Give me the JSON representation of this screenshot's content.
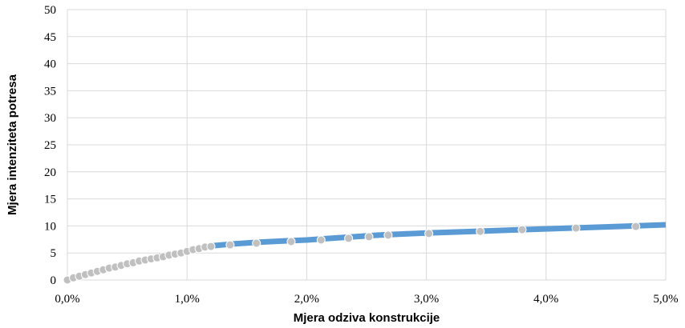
{
  "chart_data": {
    "type": "line",
    "title": "",
    "xlabel": "Mjera odziva konstrukcije",
    "ylabel": "Mjera intenziteta potresa",
    "xlim": [
      0,
      5
    ],
    "ylim": [
      0,
      50
    ],
    "x_ticks": [
      "0,0%",
      "1,0%",
      "2,0%",
      "3,0%",
      "4,0%",
      "5,0%"
    ],
    "x_tick_values": [
      0,
      1,
      2,
      3,
      4,
      5
    ],
    "y_ticks": [
      "0",
      "5",
      "10",
      "15",
      "20",
      "25",
      "30",
      "35",
      "40",
      "45",
      "50"
    ],
    "y_tick_values": [
      0,
      5,
      10,
      15,
      20,
      25,
      30,
      35,
      40,
      45,
      50
    ],
    "grid": true,
    "legend": "none",
    "series": [
      {
        "style": "line",
        "color": "#5b9bd5",
        "x": [
          0.0,
          0.2,
          0.4,
          0.6,
          0.8,
          1.0,
          1.2,
          1.4,
          1.6,
          1.8,
          2.0,
          2.2,
          2.4,
          2.6,
          2.8,
          3.0,
          3.4,
          3.8,
          4.2,
          4.6,
          5.0
        ],
        "y": [
          0.0,
          1.2,
          2.4,
          3.5,
          4.5,
          5.2,
          6.3,
          6.7,
          7.0,
          7.2,
          7.4,
          7.7,
          8.0,
          8.3,
          8.5,
          8.7,
          9.0,
          9.3,
          9.6,
          9.9,
          10.2
        ]
      },
      {
        "style": "markers",
        "color": "#c0c0c0",
        "x": [
          0.0,
          0.05,
          0.1,
          0.15,
          0.2,
          0.25,
          0.3,
          0.35,
          0.4,
          0.45,
          0.5,
          0.55,
          0.6,
          0.65,
          0.7,
          0.75,
          0.8,
          0.85,
          0.9,
          0.95,
          1.0,
          1.05,
          1.1,
          1.15,
          1.2,
          1.36,
          1.58,
          1.87,
          2.12,
          2.35,
          2.52,
          2.68,
          3.02,
          3.45,
          3.8,
          4.25,
          4.75
        ],
        "y": [
          0.0,
          0.4,
          0.7,
          1.0,
          1.3,
          1.6,
          1.9,
          2.2,
          2.4,
          2.7,
          3.0,
          3.2,
          3.5,
          3.7,
          3.9,
          4.1,
          4.3,
          4.6,
          4.8,
          5.0,
          5.3,
          5.6,
          5.8,
          6.1,
          6.2,
          6.5,
          6.8,
          7.1,
          7.4,
          7.7,
          8.0,
          8.3,
          8.6,
          9.0,
          9.3,
          9.6,
          9.9
        ]
      }
    ]
  }
}
